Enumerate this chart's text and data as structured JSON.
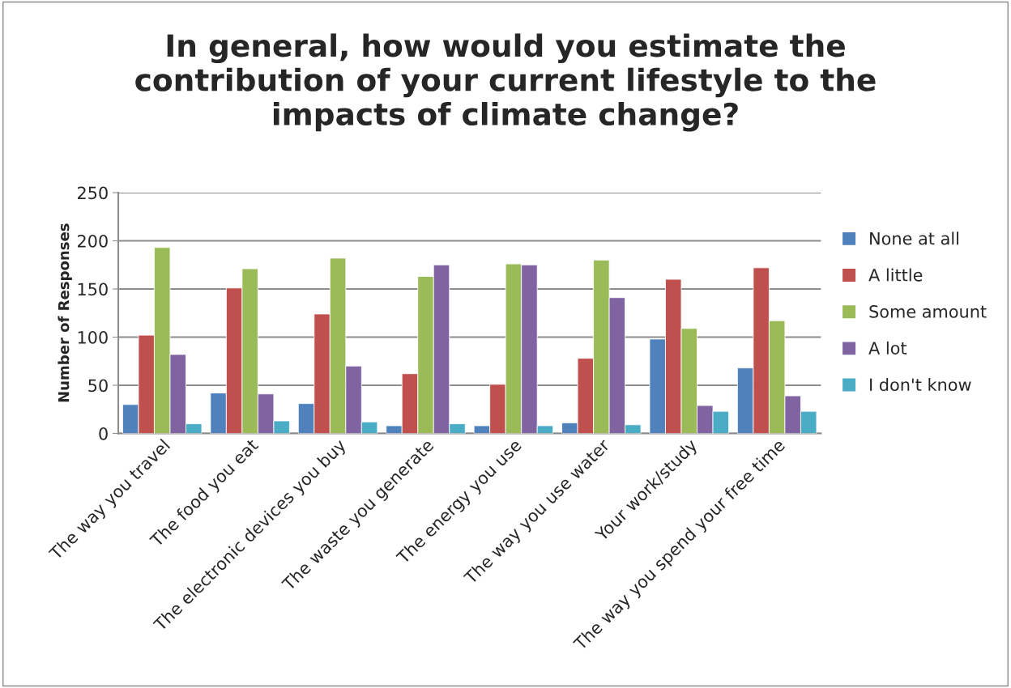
{
  "chart_data": {
    "type": "bar",
    "title": "In general, how would you estimate the contribution of your current lifestyle to the impacts of climate change?",
    "ylabel": "Number of Responses",
    "categories": [
      "The way you travel",
      "The food you eat",
      "The electronic devices you buy",
      "The waste you generate",
      "The energy you use",
      "The way you use water",
      "Your work/study",
      "The way you spend your free time"
    ],
    "series": [
      {
        "name": "None at all",
        "color": "#4f81bd",
        "values": [
          30,
          42,
          31,
          8,
          8,
          11,
          98,
          68
        ]
      },
      {
        "name": "A little",
        "color": "#c0504d",
        "values": [
          102,
          151,
          124,
          62,
          51,
          78,
          160,
          172
        ]
      },
      {
        "name": "Some amount",
        "color": "#9bbb59",
        "values": [
          193,
          171,
          182,
          163,
          176,
          180,
          109,
          117
        ]
      },
      {
        "name": "A lot",
        "color": "#8064a2",
        "values": [
          82,
          41,
          70,
          175,
          175,
          141,
          29,
          39
        ]
      },
      {
        "name": "I don't know",
        "color": "#4bacc6",
        "values": [
          10,
          13,
          12,
          10,
          8,
          9,
          23,
          23
        ]
      }
    ],
    "ylim": [
      0,
      250
    ],
    "yticks": [
      0,
      50,
      100,
      150,
      200,
      250
    ],
    "grid": "y",
    "legend": "right"
  }
}
